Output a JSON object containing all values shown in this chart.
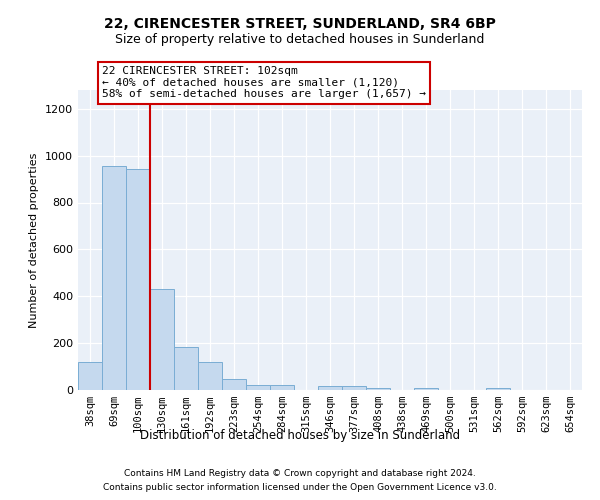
{
  "title": "22, CIRENCESTER STREET, SUNDERLAND, SR4 6BP",
  "subtitle": "Size of property relative to detached houses in Sunderland",
  "xlabel": "Distribution of detached houses by size in Sunderland",
  "ylabel": "Number of detached properties",
  "bar_labels": [
    "38sqm",
    "69sqm",
    "100sqm",
    "130sqm",
    "161sqm",
    "192sqm",
    "223sqm",
    "254sqm",
    "284sqm",
    "315sqm",
    "346sqm",
    "377sqm",
    "408sqm",
    "438sqm",
    "469sqm",
    "500sqm",
    "531sqm",
    "562sqm",
    "592sqm",
    "623sqm",
    "654sqm"
  ],
  "bar_values": [
    120,
    955,
    945,
    430,
    185,
    120,
    45,
    20,
    20,
    0,
    15,
    15,
    10,
    0,
    8,
    0,
    0,
    8,
    0,
    0,
    0
  ],
  "bar_color": "#c5d9ee",
  "bar_edgecolor": "#7aadd4",
  "vline_x": 2.5,
  "vline_color": "#cc0000",
  "annotation_line1": "22 CIRENCESTER STREET: 102sqm",
  "annotation_line2": "← 40% of detached houses are smaller (1,120)",
  "annotation_line3": "58% of semi-detached houses are larger (1,657) →",
  "annotation_box_facecolor": "#ffffff",
  "annotation_box_edgecolor": "#cc0000",
  "ylim_max": 1280,
  "yticks": [
    0,
    200,
    400,
    600,
    800,
    1000,
    1200
  ],
  "footer_line1": "Contains HM Land Registry data © Crown copyright and database right 2024.",
  "footer_line2": "Contains public sector information licensed under the Open Government Licence v3.0.",
  "bg_color": "#eaf0f8",
  "grid_color": "#d0d8e8"
}
